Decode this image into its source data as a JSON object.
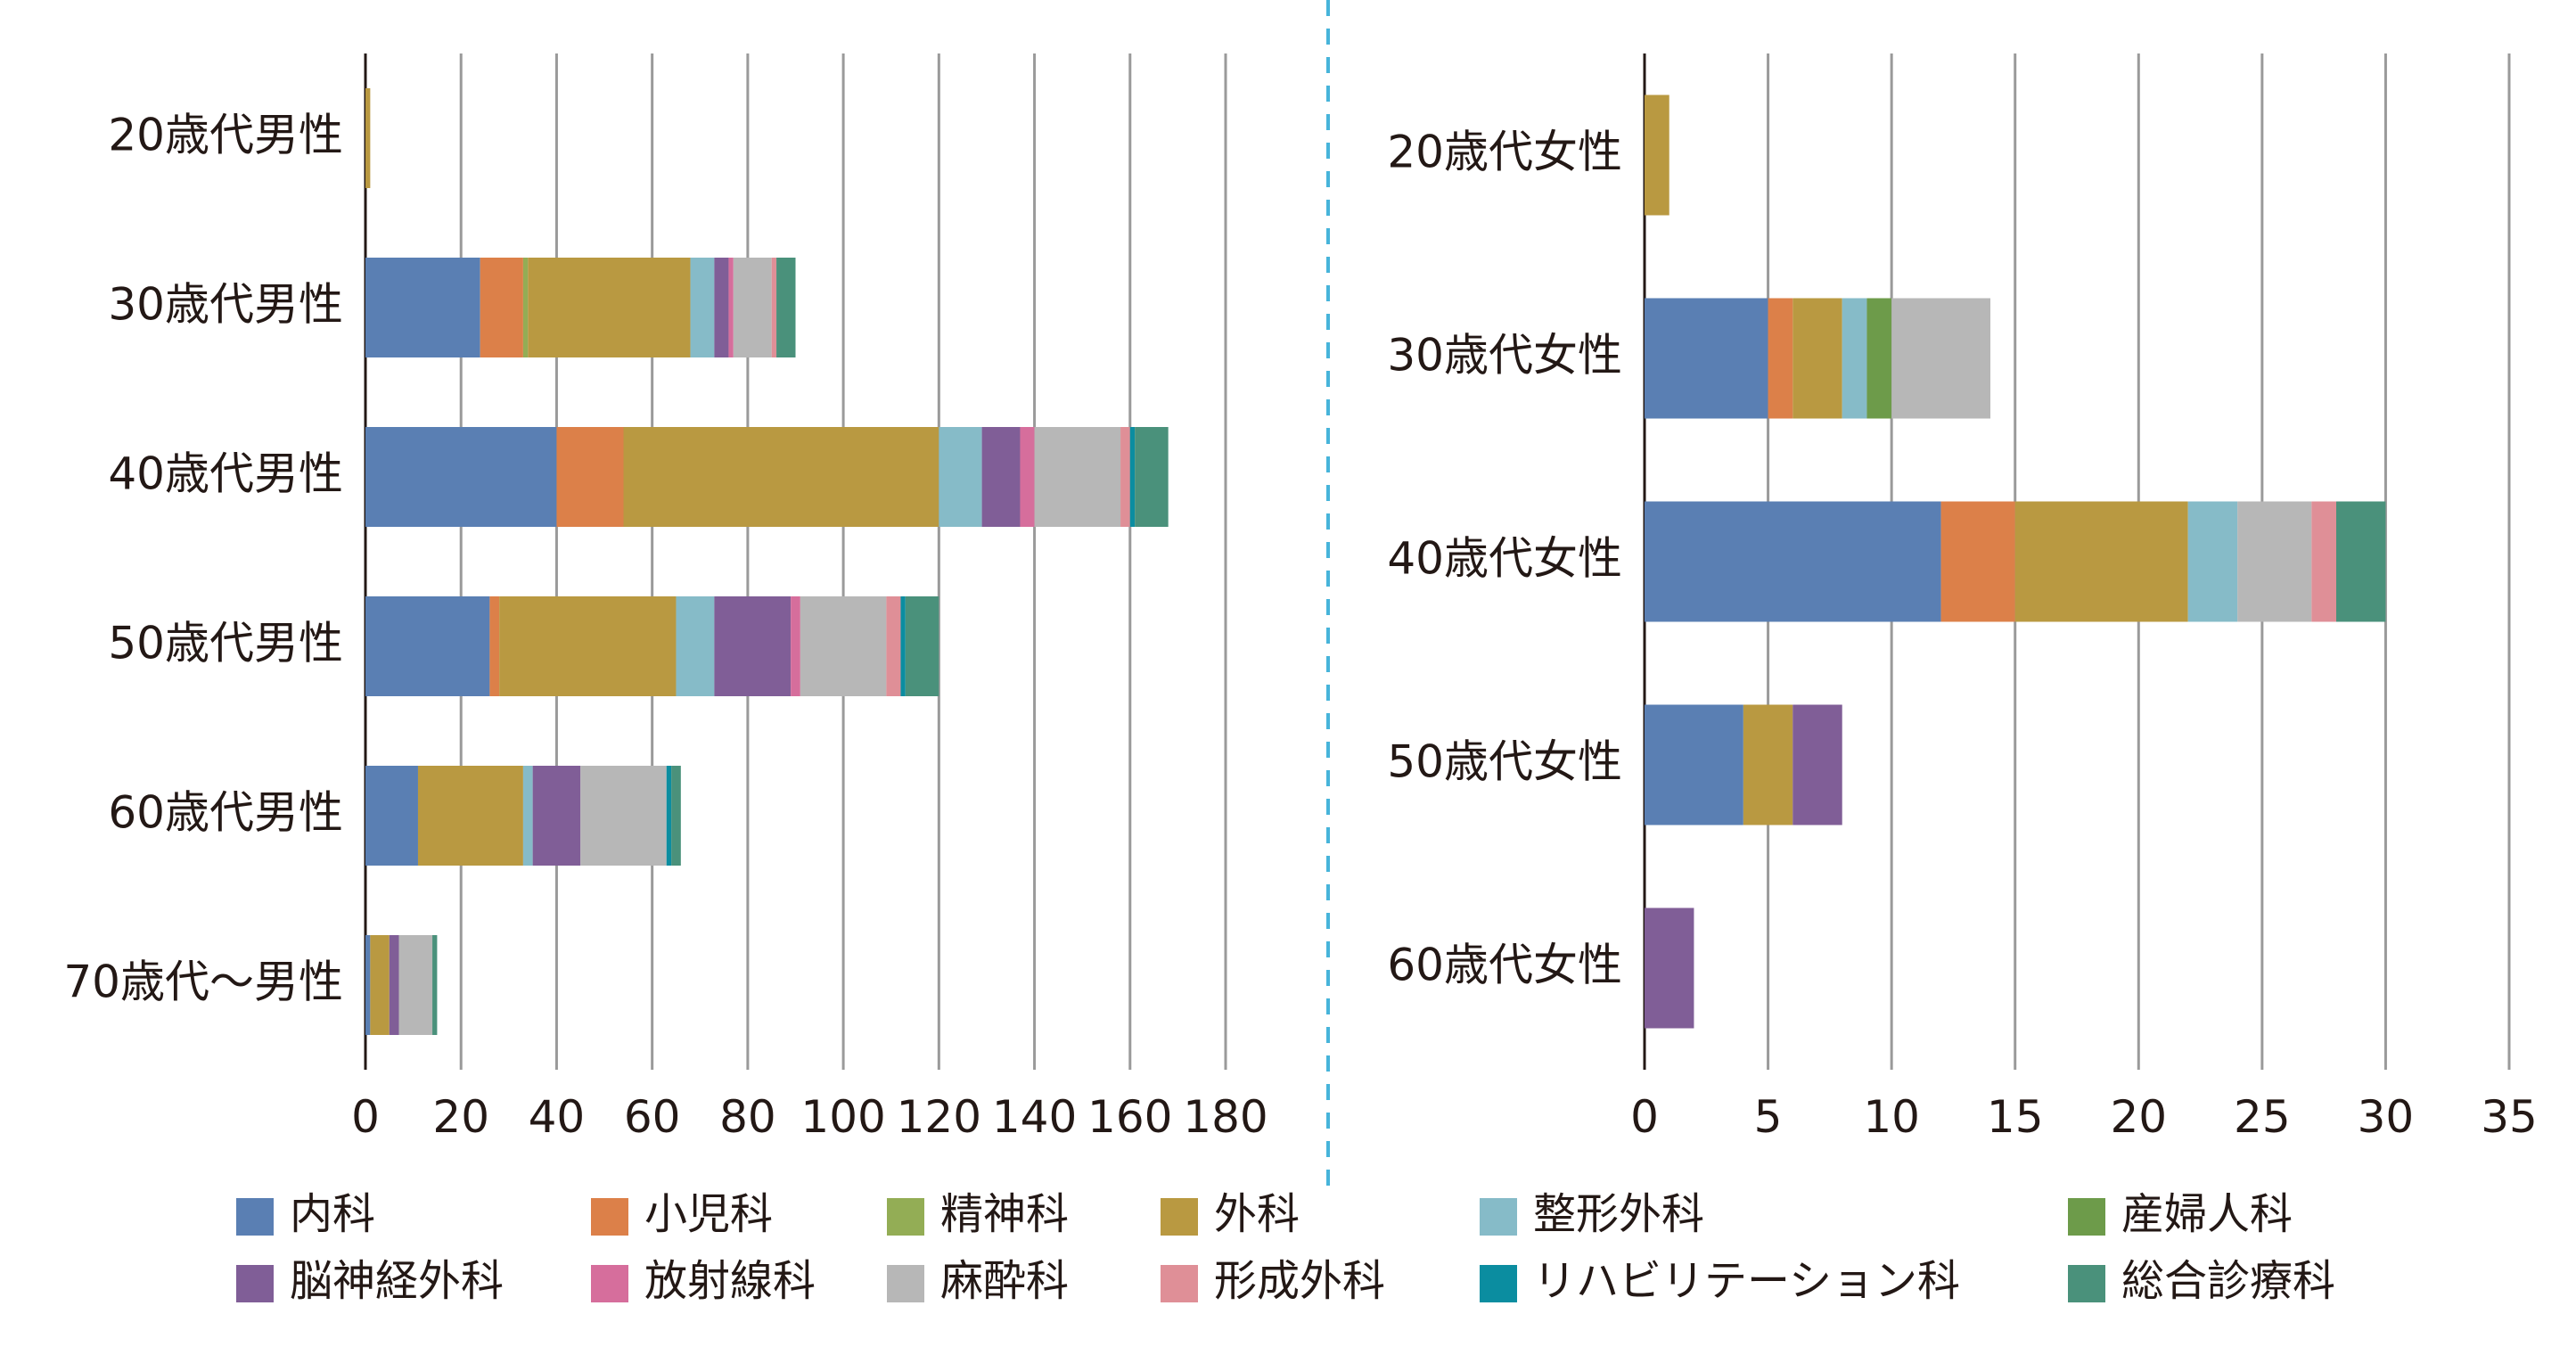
{
  "legend": [
    {
      "name": "内科",
      "color": "#5a7fb3"
    },
    {
      "name": "小児科",
      "color": "#dc8049"
    },
    {
      "name": "精神科",
      "color": "#93ad55"
    },
    {
      "name": "外科",
      "color": "#b99941"
    },
    {
      "name": "整形外科",
      "color": "#86bbc8"
    },
    {
      "name": "産婦人科",
      "color": "#6d9b4a"
    },
    {
      "name": "脳神経外科",
      "color": "#805e97"
    },
    {
      "name": "放射線科",
      "color": "#d66e9c"
    },
    {
      "name": "麻酔科",
      "color": "#b7b7b7"
    },
    {
      "name": "形成外科",
      "color": "#df8f97"
    },
    {
      "name": "リハビリテーション科",
      "color": "#0b8da0"
    },
    {
      "name": "総合診療科",
      "color": "#4a917b"
    }
  ],
  "chart_data": [
    {
      "type": "bar",
      "orientation": "horizontal",
      "stacked": true,
      "title": "",
      "xlabel": "",
      "ylabel": "",
      "xlim": [
        0,
        180
      ],
      "ticks": [
        0,
        20,
        40,
        60,
        80,
        100,
        120,
        140,
        160,
        180
      ],
      "grid": true,
      "categories": [
        "20歳代男性",
        "30歳代男性",
        "40歳代男性",
        "50歳代男性",
        "60歳代男性",
        "70歳代～男性"
      ],
      "series": [
        {
          "name": "内科",
          "values": [
            0,
            24,
            40,
            26,
            11,
            1
          ]
        },
        {
          "name": "小児科",
          "values": [
            0,
            9,
            14,
            2,
            0,
            0
          ]
        },
        {
          "name": "精神科",
          "values": [
            0,
            1,
            0,
            0,
            0,
            0
          ]
        },
        {
          "name": "外科",
          "values": [
            1,
            34,
            66,
            37,
            22,
            4
          ]
        },
        {
          "name": "整形外科",
          "values": [
            0,
            5,
            9,
            8,
            2,
            0
          ]
        },
        {
          "name": "産婦人科",
          "values": [
            0,
            0,
            0,
            0,
            0,
            0
          ]
        },
        {
          "name": "脳神経外科",
          "values": [
            0,
            3,
            8,
            16,
            10,
            2
          ]
        },
        {
          "name": "放射線科",
          "values": [
            0,
            1,
            3,
            2,
            0,
            0
          ]
        },
        {
          "name": "麻酔科",
          "values": [
            0,
            8,
            18,
            18,
            18,
            7
          ]
        },
        {
          "name": "形成外科",
          "values": [
            0,
            1,
            2,
            3,
            0,
            0
          ]
        },
        {
          "name": "リハビリテーション科",
          "values": [
            0,
            0,
            1,
            1,
            1,
            0
          ]
        },
        {
          "name": "総合診療科",
          "values": [
            0,
            4,
            7,
            7,
            2,
            1
          ]
        }
      ]
    },
    {
      "type": "bar",
      "orientation": "horizontal",
      "stacked": true,
      "title": "",
      "xlabel": "",
      "ylabel": "",
      "xlim": [
        0,
        35
      ],
      "ticks": [
        0,
        5,
        10,
        15,
        20,
        25,
        30,
        35
      ],
      "grid": true,
      "categories": [
        "20歳代女性",
        "30歳代女性",
        "40歳代女性",
        "50歳代女性",
        "60歳代女性"
      ],
      "series": [
        {
          "name": "内科",
          "values": [
            0,
            5,
            12,
            4,
            0
          ]
        },
        {
          "name": "小児科",
          "values": [
            0,
            1,
            3,
            0,
            0
          ]
        },
        {
          "name": "精神科",
          "values": [
            0,
            0,
            0,
            0,
            0
          ]
        },
        {
          "name": "外科",
          "values": [
            1,
            2,
            7,
            2,
            0
          ]
        },
        {
          "name": "整形外科",
          "values": [
            0,
            1,
            2,
            0,
            0
          ]
        },
        {
          "name": "産婦人科",
          "values": [
            0,
            1,
            0,
            0,
            0
          ]
        },
        {
          "name": "脳神経外科",
          "values": [
            0,
            0,
            0,
            2,
            2
          ]
        },
        {
          "name": "放射線科",
          "values": [
            0,
            0,
            0,
            0,
            0
          ]
        },
        {
          "name": "麻酔科",
          "values": [
            0,
            4,
            3,
            0,
            0
          ]
        },
        {
          "name": "形成外科",
          "values": [
            0,
            0,
            1,
            0,
            0
          ]
        },
        {
          "name": "リハビリテーション科",
          "values": [
            0,
            0,
            0,
            0,
            0
          ]
        },
        {
          "name": "総合診療科",
          "values": [
            0,
            0,
            2,
            0,
            0
          ]
        }
      ]
    }
  ]
}
